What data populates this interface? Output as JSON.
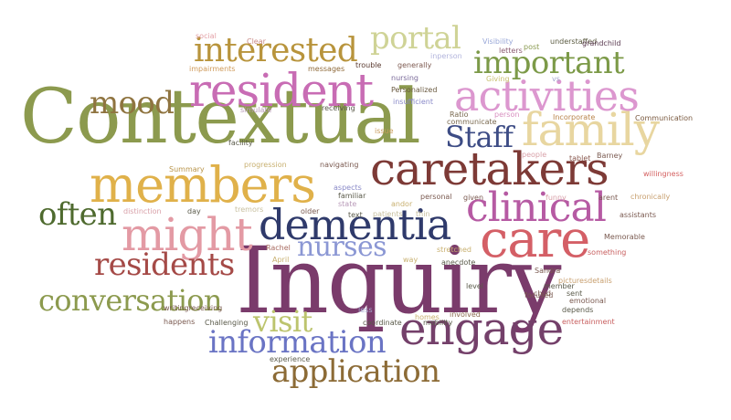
{
  "words": [
    {
      "text": "Inquiry",
      "color": "#7a3b6b"
    },
    {
      "text": "Contextual",
      "color": "#8c9a4e"
    },
    {
      "text": "caretakers",
      "color": "#7d3a36"
    },
    {
      "text": "dementia",
      "color": "#2f3a6b"
    },
    {
      "text": "members",
      "color": "#e0b14a"
    },
    {
      "text": "care",
      "color": "#d45f66"
    },
    {
      "text": "might",
      "color": "#e39aa4"
    },
    {
      "text": "clinical",
      "color": "#b65aa3"
    },
    {
      "text": "engage",
      "color": "#74406a"
    },
    {
      "text": "family",
      "color": "#e8d6a0"
    },
    {
      "text": "activities",
      "color": "#dc97cf"
    },
    {
      "text": "resident",
      "color": "#c86cb4"
    },
    {
      "text": "important",
      "color": "#7c9a48"
    },
    {
      "text": "information",
      "color": "#6a74c4"
    },
    {
      "text": "application",
      "color": "#8c6b36"
    },
    {
      "text": "conversation",
      "color": "#8c9a4e"
    },
    {
      "text": "residents",
      "color": "#a54a47"
    },
    {
      "text": "interested",
      "color": "#b8943c"
    },
    {
      "text": "portal",
      "color": "#cfd396"
    },
    {
      "text": "mood",
      "color": "#8f7440"
    },
    {
      "text": "Staff",
      "color": "#3d4c85"
    },
    {
      "text": "often",
      "color": "#4e6a2e"
    },
    {
      "text": "nurses",
      "color": "#8b97d4"
    },
    {
      "text": "visit",
      "color": "#bcc46e"
    },
    {
      "text": "social",
      "color": "#e3a0a6"
    },
    {
      "text": "Clear",
      "color": "#c98a86"
    },
    {
      "text": "impairments",
      "color": "#cf9a5a"
    },
    {
      "text": "messages",
      "color": "#8f6a3a"
    },
    {
      "text": "trouble",
      "color": "#5a3a30"
    },
    {
      "text": "generally",
      "color": "#7d5a50"
    },
    {
      "text": "nursing",
      "color": "#7a6a9a"
    },
    {
      "text": "inperson",
      "color": "#b2b4dc"
    },
    {
      "text": "Visibility",
      "color": "#9aa8d8"
    },
    {
      "text": "post",
      "color": "#8a9a50"
    },
    {
      "text": "letters",
      "color": "#8a5a70"
    },
    {
      "text": "understaffed",
      "color": "#5a5a40"
    },
    {
      "text": "grandchild",
      "color": "#5a3a50"
    },
    {
      "text": "Giving",
      "color": "#c8c070"
    },
    {
      "text": "vs",
      "color": "#a8a8d0"
    },
    {
      "text": "Personalized",
      "color": "#6a5a40"
    },
    {
      "text": "insufficient",
      "color": "#8a8ac8"
    },
    {
      "text": "Ratio",
      "color": "#7a6a50"
    },
    {
      "text": "person",
      "color": "#d890c0"
    },
    {
      "text": "communicate",
      "color": "#7a6a50"
    },
    {
      "text": "Incorporate",
      "color": "#b8844a"
    },
    {
      "text": "Communication",
      "color": "#7a5a40"
    },
    {
      "text": "simulate",
      "color": "#b89ab8"
    },
    {
      "text": "receiving",
      "color": "#5a5a4a"
    },
    {
      "text": "facility",
      "color": "#5a5a4a"
    },
    {
      "text": "issue",
      "color": "#c89a5a"
    },
    {
      "text": "Summary",
      "color": "#b8944a"
    },
    {
      "text": "progression",
      "color": "#c8b070"
    },
    {
      "text": "navigating",
      "color": "#7a5a50"
    },
    {
      "text": "people",
      "color": "#d8a0a8"
    },
    {
      "text": "tablet",
      "color": "#8a5a50"
    },
    {
      "text": "Barney",
      "color": "#7a5a50"
    },
    {
      "text": "willingness",
      "color": "#d46060"
    },
    {
      "text": "aspects",
      "color": "#8a8ac8"
    },
    {
      "text": "familiar",
      "color": "#5a5a4a"
    },
    {
      "text": "state",
      "color": "#b89ab8"
    },
    {
      "text": "andor",
      "color": "#c8b070"
    },
    {
      "text": "personal",
      "color": "#7a5a50"
    },
    {
      "text": "given",
      "color": "#7a5a50"
    },
    {
      "text": "funny",
      "color": "#d8a0a8"
    },
    {
      "text": "arent",
      "color": "#7a5a50"
    },
    {
      "text": "chronically",
      "color": "#c8a070"
    },
    {
      "text": "distinction",
      "color": "#d8a0a8"
    },
    {
      "text": "day",
      "color": "#5a5a4a"
    },
    {
      "text": "tremors",
      "color": "#c8c0a0"
    },
    {
      "text": "older",
      "color": "#7a5a50"
    },
    {
      "text": "text",
      "color": "#5a5a4a"
    },
    {
      "text": "patients",
      "color": "#c8c0a0"
    },
    {
      "text": "thin",
      "color": "#c8c0a0"
    },
    {
      "text": "assistants",
      "color": "#7a5a50"
    },
    {
      "text": "Memorable",
      "color": "#7a5a50"
    },
    {
      "text": "something",
      "color": "#c86060"
    },
    {
      "text": "Rachel",
      "color": "#a86a60"
    },
    {
      "text": "April",
      "color": "#c8b070"
    },
    {
      "text": "way",
      "color": "#c8b070"
    },
    {
      "text": "stretched",
      "color": "#c8b070"
    },
    {
      "text": "anecdote",
      "color": "#5a5a4a"
    },
    {
      "text": "Sandra",
      "color": "#7a5a50"
    },
    {
      "text": "picturesdetails",
      "color": "#c8a070"
    },
    {
      "text": "level",
      "color": "#5a5a4a"
    },
    {
      "text": "member",
      "color": "#5a5a4a"
    },
    {
      "text": "child",
      "color": "#7a5a50"
    },
    {
      "text": "sent",
      "color": "#5a5a4a"
    },
    {
      "text": "focused",
      "color": "#7a5a50"
    },
    {
      "text": "emotional",
      "color": "#7a5a50"
    },
    {
      "text": "writingreceiving",
      "color": "#7a5a50"
    },
    {
      "text": "depends",
      "color": "#5a5a4a"
    },
    {
      "text": "less",
      "color": "#a8a8d0"
    },
    {
      "text": "homes",
      "color": "#c8b070"
    },
    {
      "text": "involved",
      "color": "#8a6a50"
    },
    {
      "text": "coordinate",
      "color": "#5a5a4a"
    },
    {
      "text": "mobility",
      "color": "#5a5a4a"
    },
    {
      "text": "entertainment",
      "color": "#c86060"
    },
    {
      "text": "happens",
      "color": "#7a5a50"
    },
    {
      "text": "Challenging",
      "color": "#5a5a4a"
    },
    {
      "text": "experience",
      "color": "#5a5a4a"
    }
  ]
}
